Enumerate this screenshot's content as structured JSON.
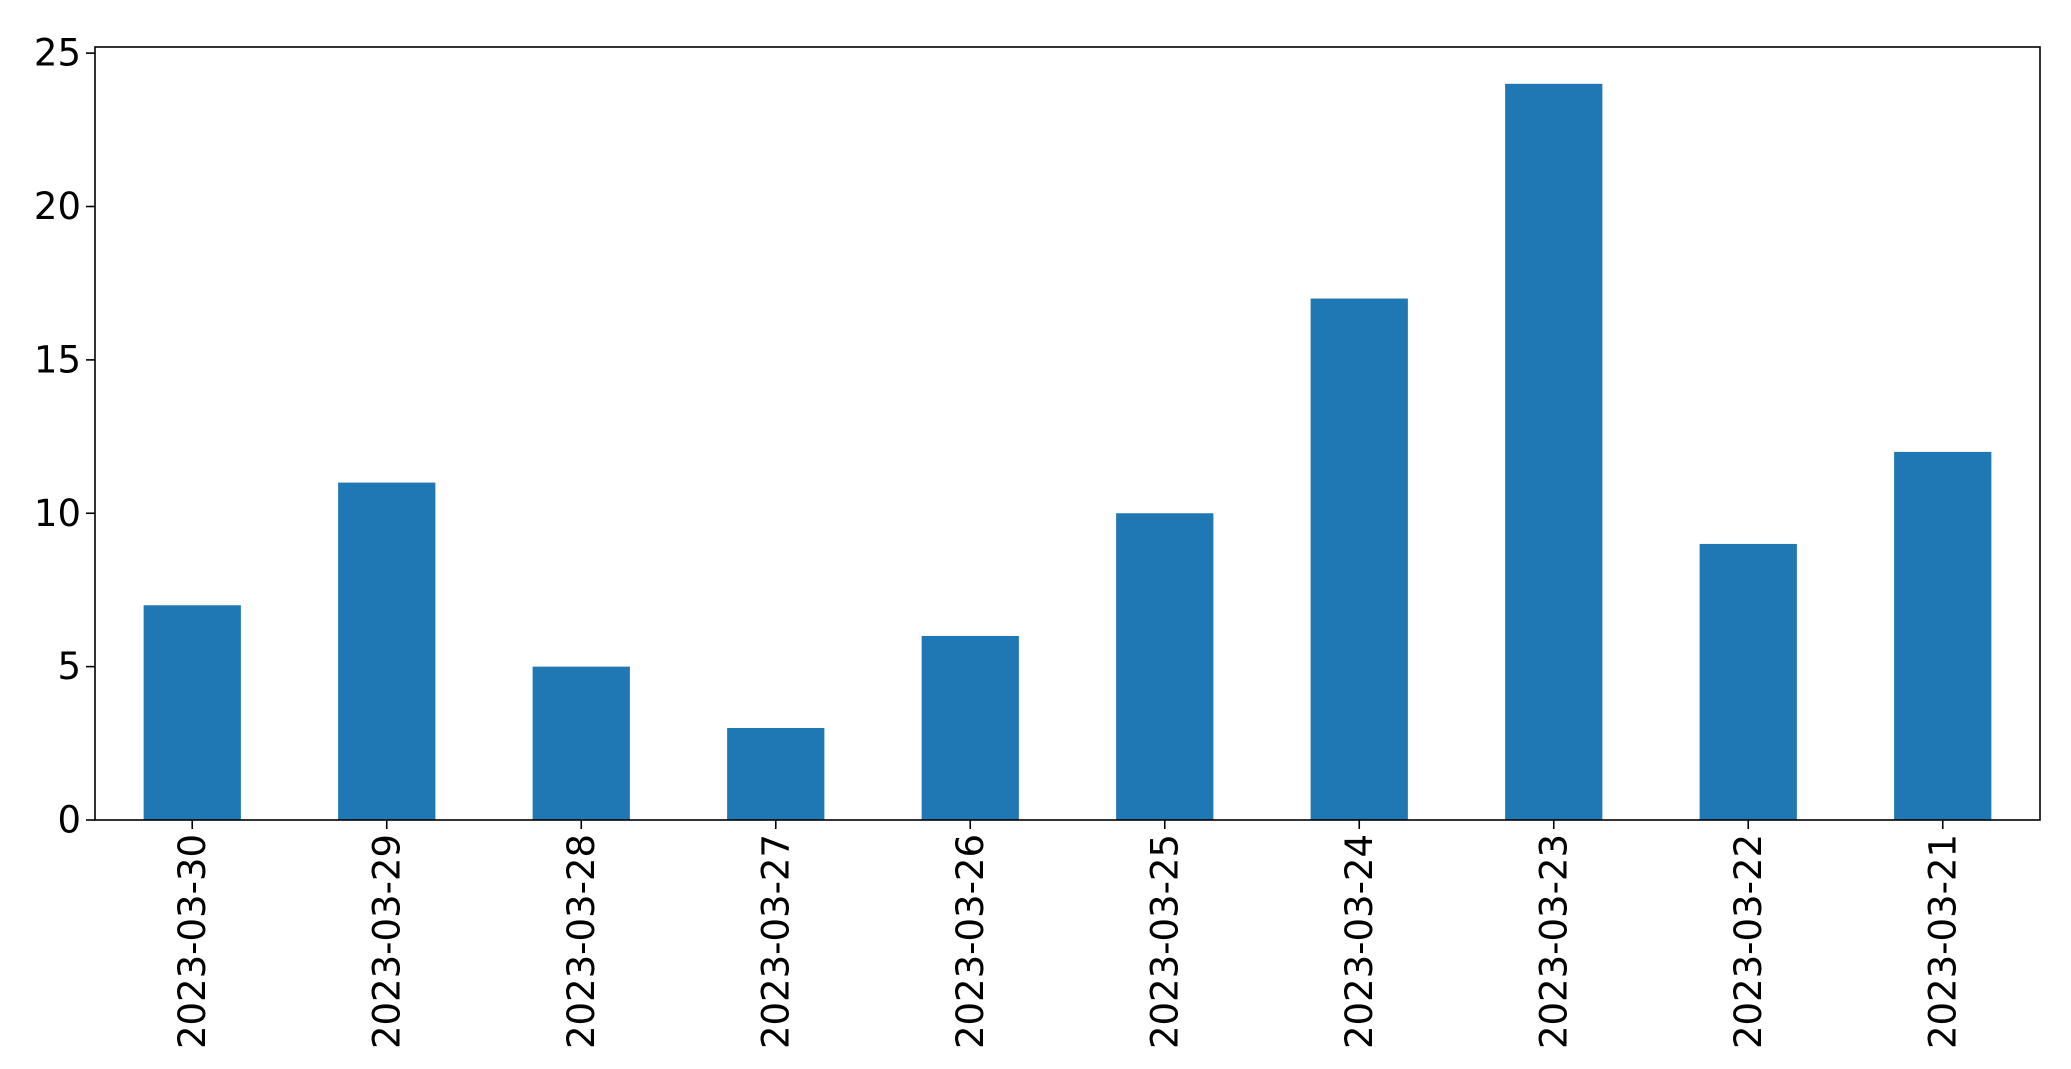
{
  "chart_data": {
    "type": "bar",
    "categories": [
      "2023-03-30",
      "2023-03-29",
      "2023-03-28",
      "2023-03-27",
      "2023-03-26",
      "2023-03-25",
      "2023-03-24",
      "2023-03-23",
      "2023-03-22",
      "2023-03-21"
    ],
    "values": [
      7,
      11,
      5,
      3,
      6,
      10,
      17,
      24,
      9,
      12
    ],
    "ylim": [
      0,
      25.2
    ],
    "yticks": [
      0,
      5,
      10,
      15,
      20,
      25
    ],
    "grid": false,
    "bar_color": "#1f77b4",
    "title": "",
    "xlabel": "",
    "ylabel": ""
  }
}
